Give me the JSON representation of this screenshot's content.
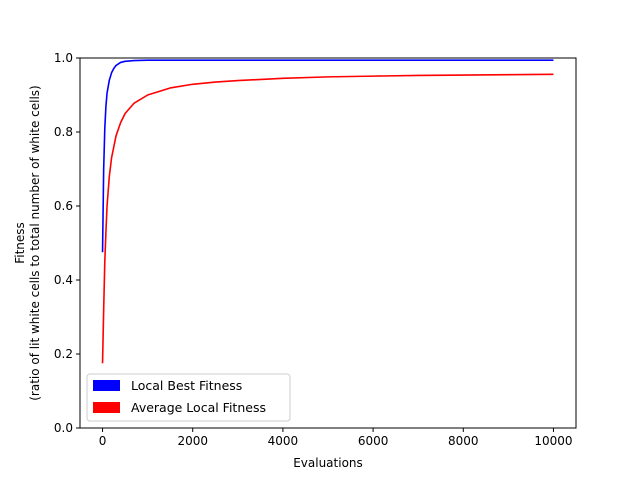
{
  "chart_data": {
    "type": "line",
    "title": "",
    "xlabel": "Evaluations",
    "ylabel_line1": "Fitness",
    "ylabel_line2": "(ratio of lit white cells to total number of white cells)",
    "xlim": [
      -500,
      10500
    ],
    "ylim": [
      0.0,
      1.0
    ],
    "xticks": [
      0,
      2000,
      4000,
      6000,
      8000,
      10000
    ],
    "xtick_labels": [
      "0",
      "2000",
      "4000",
      "6000",
      "8000",
      "10000"
    ],
    "yticks": [
      0.0,
      0.2,
      0.4,
      0.6,
      0.8,
      1.0
    ],
    "ytick_labels": [
      "0.0",
      "0.2",
      "0.4",
      "0.6",
      "0.8",
      "1.0"
    ],
    "grid": false,
    "legend_position": "lower-left",
    "series": [
      {
        "name": "Local Best Fitness",
        "color": "#0000ff",
        "x": [
          0,
          25,
          50,
          75,
          100,
          150,
          200,
          250,
          300,
          400,
          500,
          700,
          1000,
          1500,
          2000,
          3000,
          4000,
          5000,
          6000,
          7000,
          8000,
          9000,
          10000
        ],
        "y": [
          0.475,
          0.7,
          0.81,
          0.87,
          0.905,
          0.94,
          0.96,
          0.972,
          0.98,
          0.988,
          0.991,
          0.993,
          0.994,
          0.994,
          0.994,
          0.994,
          0.994,
          0.994,
          0.994,
          0.994,
          0.994,
          0.994,
          0.994
        ]
      },
      {
        "name": "Average Local Fitness",
        "color": "#ff0000",
        "x": [
          0,
          25,
          50,
          75,
          100,
          150,
          200,
          300,
          400,
          500,
          700,
          1000,
          1500,
          2000,
          2500,
          3000,
          4000,
          5000,
          6000,
          7000,
          8000,
          9000,
          10000
        ],
        "y": [
          0.175,
          0.32,
          0.45,
          0.53,
          0.6,
          0.68,
          0.73,
          0.79,
          0.825,
          0.85,
          0.878,
          0.9,
          0.919,
          0.929,
          0.935,
          0.939,
          0.945,
          0.949,
          0.951,
          0.953,
          0.954,
          0.955,
          0.956
        ]
      }
    ]
  }
}
